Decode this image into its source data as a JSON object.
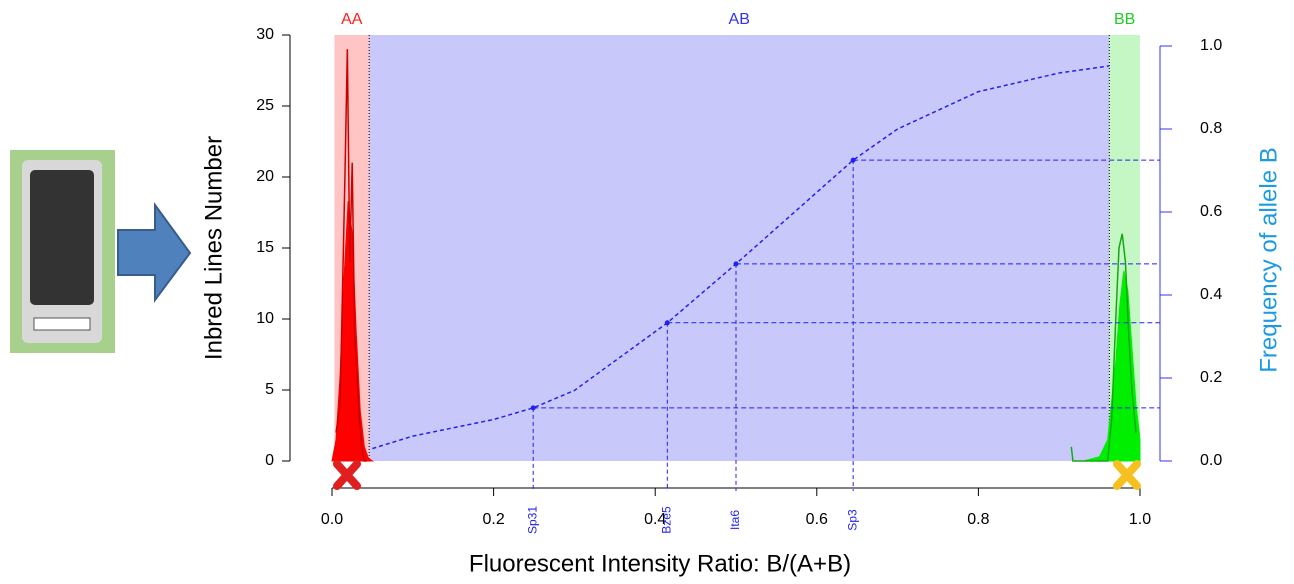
{
  "chart_data": {
    "type": "genotype",
    "x_label": "Fluorescent Intensity Ratio: B/(A+B)",
    "y_label": "Inbred Lines Number",
    "y2_label": "Frequency of allele B",
    "y2_color": "#1e9be0",
    "xlim": [
      0,
      1
    ],
    "ylim": [
      0,
      30
    ],
    "y2lim": [
      0,
      1
    ],
    "xticks": [
      {
        "value": 0,
        "label": "0.0"
      },
      {
        "value": 0.2,
        "label": "0.2"
      },
      {
        "value": 0.4,
        "label": "0.4"
      },
      {
        "value": 0.6,
        "label": "0.6"
      },
      {
        "value": 0.8,
        "label": "0.8"
      },
      {
        "value": 1,
        "label": "1.0"
      }
    ],
    "yticks": [
      0,
      5,
      10,
      15,
      20,
      25,
      30
    ],
    "y2ticks": [
      {
        "value": 0,
        "label": "0.0"
      },
      {
        "value": 0.2,
        "label": "0.2"
      },
      {
        "value": 0.4,
        "label": "0.4"
      },
      {
        "value": 0.6,
        "label": "0.6"
      },
      {
        "value": 0.8,
        "label": "0.8"
      },
      {
        "value": 1,
        "label": "1.0"
      }
    ],
    "regions": [
      {
        "name": "AA",
        "color": "#ffc4c4",
        "label_color": "#ff2020",
        "x": [
          0.003,
          0.046
        ]
      },
      {
        "name": "AB",
        "color": "#c8c8fa",
        "label_color": "#3333ee",
        "x": [
          0.046,
          0.962
        ]
      },
      {
        "name": "BB",
        "color": "#c4f7c4",
        "label_color": "#22cc22",
        "x": [
          0.962,
          1.0
        ]
      }
    ],
    "densities": [
      {
        "color": "#ff0000",
        "x": [
          0.0,
          0.005,
          0.01,
          0.015,
          0.02,
          0.025,
          0.03,
          0.035,
          0.04,
          0.045,
          0.05
        ],
        "values": [
          0,
          1.5,
          6,
          13,
          18.3,
          16,
          9,
          3.5,
          1,
          0.2,
          0
        ]
      },
      {
        "color": "#00ee00",
        "x": [
          0.93,
          0.95,
          0.96,
          0.97,
          0.975,
          0.98,
          0.985,
          0.99,
          0.995,
          1.0
        ],
        "values": [
          0,
          0.3,
          1.5,
          7,
          11,
          13.4,
          12,
          8,
          4,
          1.5
        ]
      }
    ],
    "series": [
      {
        "color": "#cc0000",
        "x": [
          0.005,
          0.01,
          0.013,
          0.016,
          0.019,
          0.022,
          0.025,
          0.028,
          0.031,
          0.034,
          0.037,
          0.04,
          0.043
        ],
        "values": [
          2,
          4,
          12,
          20,
          29,
          14,
          21,
          9,
          6,
          3,
          1,
          0,
          0
        ]
      },
      {
        "color": "#11aa11",
        "x": [
          0.915,
          0.917,
          0.96,
          0.965,
          0.97,
          0.974,
          0.978,
          0.982,
          0.986,
          0.99,
          0.995
        ],
        "values": [
          1,
          0,
          0,
          3,
          10,
          15,
          16,
          14,
          9,
          5,
          2
        ]
      }
    ],
    "curve": {
      "color": "#2222ee",
      "axis": "y2",
      "x": [
        0.05,
        0.1,
        0.2,
        0.249,
        0.3,
        0.415,
        0.5,
        0.645,
        0.7,
        0.8,
        0.9,
        0.962
      ],
      "values": [
        0.03,
        0.06,
        0.1,
        0.128,
        0.17,
        0.333,
        0.475,
        0.725,
        0.8,
        0.89,
        0.935,
        0.952
      ]
    },
    "markers": {
      "color": "#2222ee",
      "axis": "y2",
      "labels": [
        "Sp31",
        "Bze5",
        "Ita6",
        "Sp3"
      ],
      "x": [
        0.249,
        0.415,
        0.5,
        0.645
      ],
      "values": [
        0.128,
        0.333,
        0.475,
        0.725
      ]
    }
  }
}
